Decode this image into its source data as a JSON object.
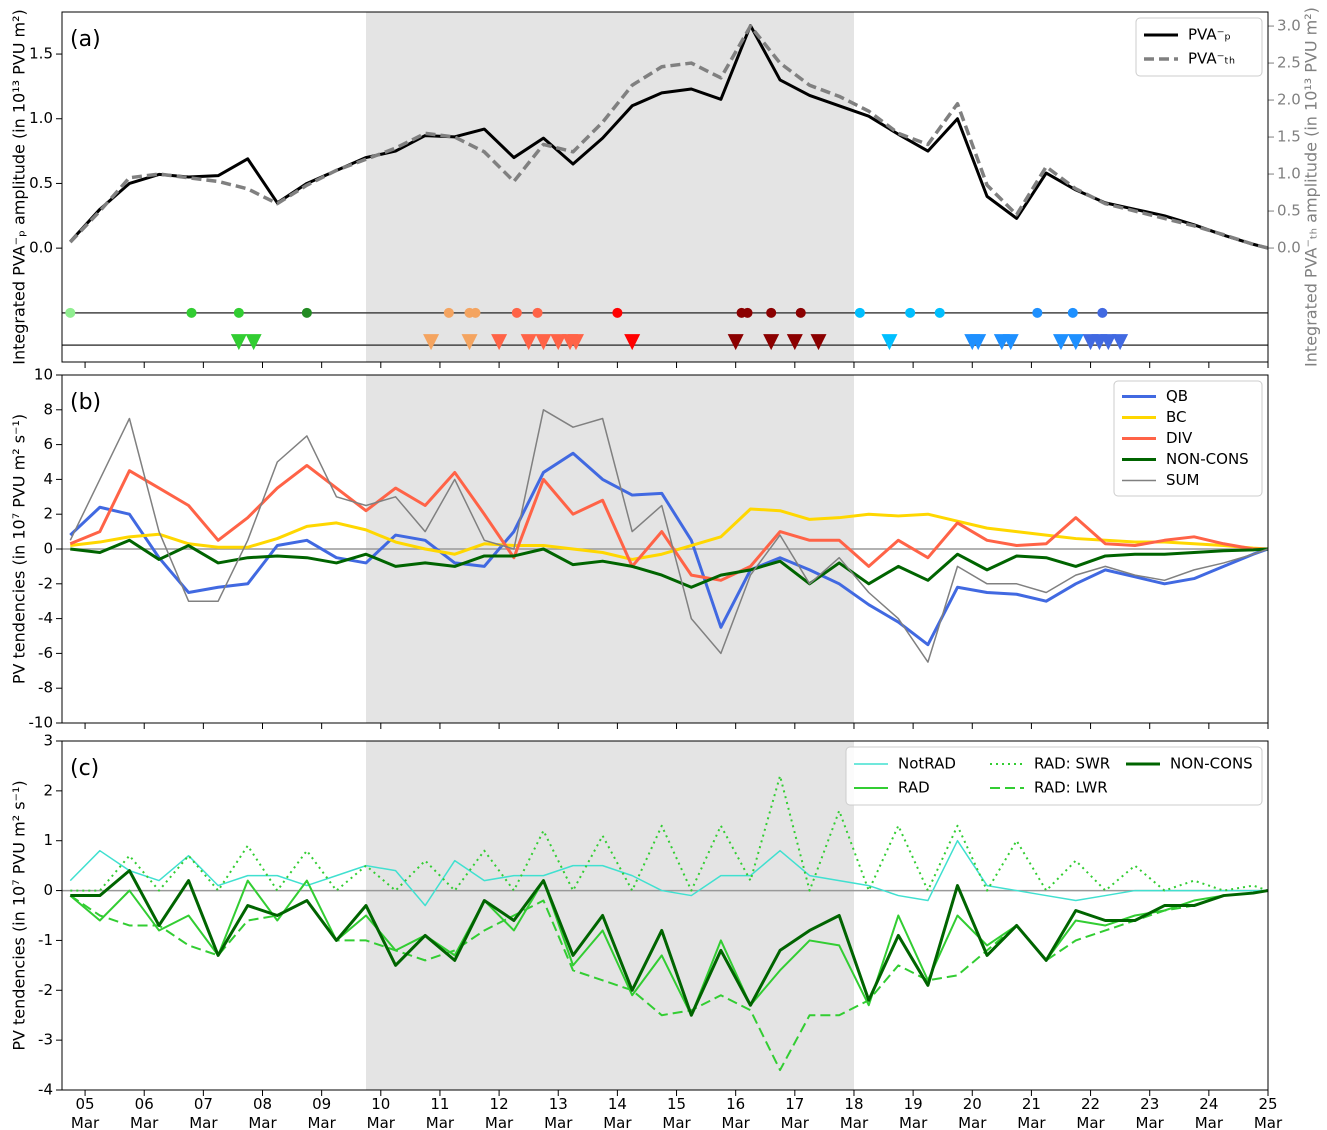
{
  "chart_data": [
    {
      "type": "line",
      "panel_label": "(a)",
      "ylabel": "Integrated PVA⁻ₚ amplitude (in 10¹³ PVU m²)",
      "y2label": "Integrated PVA⁻ₜₕ amplitude (in 10¹³ PVU m²)",
      "xlim": [
        4.61,
        25
      ],
      "ylim": [
        -0.88,
        1.825
      ],
      "y2lim": [
        -1.54,
        3.19
      ],
      "xticks": [
        5,
        6,
        7,
        8,
        9,
        10,
        11,
        12,
        13,
        14,
        15,
        16,
        17,
        18,
        19,
        20,
        21,
        22,
        23,
        24,
        25
      ],
      "yticks": [
        {
          "value": 0,
          "label": "0.0"
        },
        {
          "value": 0.5,
          "label": "0.5"
        },
        {
          "value": 1,
          "label": "1.0"
        },
        {
          "value": 1.5,
          "label": "1.5"
        }
      ],
      "y2ticks": [
        {
          "value": 0,
          "label": "0.0"
        },
        {
          "value": 0.5,
          "label": "0.5"
        },
        {
          "value": 1,
          "label": "1.0"
        },
        {
          "value": 1.5,
          "label": "1.5"
        },
        {
          "value": 2,
          "label": "2.0"
        },
        {
          "value": 2.5,
          "label": "2.5"
        },
        {
          "value": 3,
          "label": "3.0"
        }
      ],
      "shade": [
        9.75,
        18.0
      ],
      "legend": "upper right",
      "x": [
        4.75,
        5.25,
        5.75,
        6.25,
        6.75,
        7.25,
        7.75,
        8.25,
        8.75,
        9.25,
        9.75,
        10.25,
        10.75,
        11.25,
        11.75,
        12.25,
        12.75,
        13.25,
        13.75,
        14.25,
        14.75,
        15.25,
        15.75,
        16.25,
        16.75,
        17.25,
        17.75,
        18.25,
        18.75,
        19.25,
        19.75,
        20.25,
        20.75,
        21.25,
        21.75,
        22.25,
        22.75,
        23.25,
        23.75,
        24.25,
        24.75,
        25
      ],
      "series": [
        {
          "name": "PVA⁻ₚ",
          "color": "#000000",
          "linestyle": "solid",
          "values": [
            0.05,
            0.3,
            0.5,
            0.57,
            0.55,
            0.56,
            0.69,
            0.35,
            0.5,
            0.6,
            0.7,
            0.75,
            0.87,
            0.86,
            0.92,
            0.7,
            0.85,
            0.65,
            0.85,
            1.1,
            1.2,
            1.23,
            1.15,
            1.72,
            1.3,
            1.18,
            1.1,
            1.02,
            0.88,
            0.75,
            1.0,
            0.4,
            0.23,
            0.58,
            0.45,
            0.35,
            0.3,
            0.25,
            0.18,
            0.1,
            0.03,
            0
          ]
        },
        {
          "name": "PVA⁻ₜₕ",
          "color": "#808080",
          "linestyle": "dashed",
          "axis": "y2",
          "values": [
            0.08,
            0.5,
            0.95,
            1.0,
            0.95,
            0.9,
            0.8,
            0.6,
            0.85,
            1.05,
            1.2,
            1.35,
            1.55,
            1.5,
            1.3,
            0.9,
            1.4,
            1.3,
            1.7,
            2.2,
            2.45,
            2.5,
            2.3,
            3.0,
            2.5,
            2.2,
            2.05,
            1.85,
            1.55,
            1.4,
            1.95,
            0.85,
            0.45,
            1.1,
            0.8,
            0.6,
            0.5,
            0.4,
            0.3,
            0.18,
            0.05,
            0
          ]
        }
      ],
      "event_rows": [
        {
          "marker": "circle",
          "y": -0.5,
          "x": [
            4.75,
            6.8,
            7.6,
            8.75,
            11.15,
            11.5,
            11.6,
            12.3,
            12.65,
            14.0,
            16.1,
            16.2,
            16.6,
            17.1,
            18.1,
            18.95,
            19.45,
            21.1,
            21.7,
            22.2
          ],
          "colors": [
            "#90ee90",
            "#32cd32",
            "#32cd32",
            "#228b22",
            "#f4a460",
            "#f4a460",
            "#f4a460",
            "#ff6347",
            "#ff6347",
            "#ff0000",
            "#8b0000",
            "#8b0000",
            "#8b0000",
            "#8b0000",
            "#00bfff",
            "#00bfff",
            "#00bfff",
            "#1e90ff",
            "#1e90ff",
            "#4169e1"
          ]
        },
        {
          "marker": "triangle",
          "y": -0.75,
          "x": [
            7.6,
            7.85,
            10.85,
            11.5,
            12.0,
            12.5,
            12.75,
            13.0,
            13.2,
            13.3,
            14.25,
            16.0,
            16.6,
            17.0,
            17.4,
            18.6,
            20.0,
            20.1,
            20.5,
            20.65,
            21.5,
            21.75,
            22.0,
            22.15,
            22.3,
            22.5
          ],
          "colors": [
            "#32cd32",
            "#32cd32",
            "#f4a460",
            "#f4a460",
            "#ff6347",
            "#ff6347",
            "#ff6347",
            "#ff6347",
            "#ff6347",
            "#ff6347",
            "#ff0000",
            "#8b0000",
            "#8b0000",
            "#8b0000",
            "#8b0000",
            "#00bfff",
            "#1e90ff",
            "#1e90ff",
            "#1e90ff",
            "#1e90ff",
            "#1e90ff",
            "#1e90ff",
            "#4169e1",
            "#4169e1",
            "#4169e1",
            "#4169e1"
          ]
        }
      ]
    },
    {
      "type": "line",
      "panel_label": "(b)",
      "ylabel": "PV tendencies (in 10⁷ PVU m² s⁻¹)",
      "xlim": [
        4.61,
        25
      ],
      "ylim": [
        -10,
        10
      ],
      "xticks": [
        5,
        6,
        7,
        8,
        9,
        10,
        11,
        12,
        13,
        14,
        15,
        16,
        17,
        18,
        19,
        20,
        21,
        22,
        23,
        24,
        25
      ],
      "yticks": [
        -10,
        -8,
        -6,
        -4,
        -2,
        0,
        2,
        4,
        6,
        8,
        10
      ],
      "shade": [
        9.75,
        18.0
      ],
      "hline": 0,
      "legend": "upper right",
      "x": [
        4.75,
        5.25,
        5.75,
        6.25,
        6.75,
        7.25,
        7.75,
        8.25,
        8.75,
        9.25,
        9.75,
        10.25,
        10.75,
        11.25,
        11.75,
        12.25,
        12.75,
        13.25,
        13.75,
        14.25,
        14.75,
        15.25,
        15.75,
        16.25,
        16.75,
        17.25,
        17.75,
        18.25,
        18.75,
        19.25,
        19.75,
        20.25,
        20.75,
        21.25,
        21.75,
        22.25,
        22.75,
        23.25,
        23.75,
        24.25,
        24.75,
        25
      ],
      "series": [
        {
          "name": "QB",
          "color": "#4169e1",
          "linestyle": "solid",
          "values": [
            0.8,
            2.4,
            2.0,
            -0.5,
            -2.5,
            -2.2,
            -2.0,
            0.2,
            0.5,
            -0.5,
            -0.8,
            0.8,
            0.5,
            -0.8,
            -1.0,
            1.0,
            4.4,
            5.5,
            4.0,
            3.1,
            3.2,
            0.5,
            -4.5,
            -1.2,
            -0.5,
            -1.2,
            -2.0,
            -3.2,
            -4.2,
            -5.5,
            -2.2,
            -2.5,
            -2.6,
            -3.0,
            -2.0,
            -1.2,
            -1.6,
            -2.0,
            -1.7,
            -1.0,
            -0.3,
            0
          ]
        },
        {
          "name": "BC",
          "color": "#ffd700",
          "linestyle": "solid",
          "values": [
            0.2,
            0.4,
            0.7,
            0.85,
            0.3,
            0.1,
            0.1,
            0.6,
            1.3,
            1.5,
            1.1,
            0.4,
            0.0,
            -0.3,
            0.3,
            0.2,
            0.2,
            0.0,
            -0.2,
            -0.6,
            -0.3,
            0.2,
            0.7,
            2.3,
            2.2,
            1.7,
            1.8,
            2.0,
            1.9,
            2.0,
            1.6,
            1.2,
            1.0,
            0.8,
            0.6,
            0.5,
            0.4,
            0.4,
            0.3,
            0.2,
            0.05,
            0
          ]
        },
        {
          "name": "DIV",
          "color": "#ff6347",
          "linestyle": "solid",
          "values": [
            0.3,
            1.0,
            4.5,
            3.5,
            2.5,
            0.5,
            1.8,
            3.5,
            4.8,
            3.5,
            2.2,
            3.5,
            2.5,
            4.4,
            2.0,
            -0.5,
            4.0,
            2.0,
            2.8,
            -1.0,
            1.0,
            -1.5,
            -1.8,
            -1.0,
            1.0,
            0.5,
            0.5,
            -1.0,
            0.5,
            -0.5,
            1.5,
            0.5,
            0.2,
            0.3,
            1.8,
            0.3,
            0.2,
            0.5,
            0.7,
            0.3,
            0.0,
            0
          ]
        },
        {
          "name": "NON-CONS",
          "color": "#006400",
          "linestyle": "solid",
          "values": [
            0.0,
            -0.2,
            0.5,
            -0.6,
            0.2,
            -0.8,
            -0.5,
            -0.4,
            -0.5,
            -0.8,
            -0.3,
            -1.0,
            -0.8,
            -1.0,
            -0.4,
            -0.4,
            0.0,
            -0.9,
            -0.7,
            -1.0,
            -1.5,
            -2.2,
            -1.5,
            -1.2,
            -0.7,
            -2.0,
            -0.8,
            -2.0,
            -1.0,
            -1.8,
            -0.3,
            -1.2,
            -0.4,
            -0.5,
            -1.0,
            -0.4,
            -0.3,
            -0.3,
            -0.2,
            -0.1,
            -0.05,
            0
          ]
        },
        {
          "name": "SUM",
          "color": "#808080",
          "linestyle": "solid",
          "values": [
            0.5,
            4.0,
            7.5,
            1.0,
            -3.0,
            -3.0,
            0.5,
            5.0,
            6.5,
            3.0,
            2.5,
            3.0,
            1.0,
            4.0,
            0.5,
            0.0,
            8.0,
            7.0,
            7.5,
            1.0,
            2.5,
            -4.0,
            -6.0,
            -1.5,
            0.8,
            -2.0,
            -0.5,
            -2.5,
            -4.0,
            -6.5,
            -1.0,
            -2.0,
            -2.0,
            -2.5,
            -1.5,
            -1.0,
            -1.5,
            -1.8,
            -1.2,
            -0.8,
            -0.3,
            0
          ]
        }
      ]
    },
    {
      "type": "line",
      "panel_label": "(c)",
      "ylabel": "PV tendencies (in 10⁷ PVU m² s⁻¹)",
      "xlim": [
        4.61,
        25
      ],
      "ylim": [
        -4,
        3
      ],
      "xticks": [
        {
          "value": 5,
          "label": "05\nMar"
        },
        {
          "value": 6,
          "label": "06\nMar"
        },
        {
          "value": 7,
          "label": "07\nMar"
        },
        {
          "value": 8,
          "label": "08\nMar"
        },
        {
          "value": 9,
          "label": "09\nMar"
        },
        {
          "value": 10,
          "label": "10\nMar"
        },
        {
          "value": 11,
          "label": "11\nMar"
        },
        {
          "value": 12,
          "label": "12\nMar"
        },
        {
          "value": 13,
          "label": "13\nMar"
        },
        {
          "value": 14,
          "label": "14\nMar"
        },
        {
          "value": 15,
          "label": "15\nMar"
        },
        {
          "value": 16,
          "label": "16\nMar"
        },
        {
          "value": 17,
          "label": "17\nMar"
        },
        {
          "value": 18,
          "label": "18\nMar"
        },
        {
          "value": 19,
          "label": "19\nMar"
        },
        {
          "value": 20,
          "label": "20\nMar"
        },
        {
          "value": 21,
          "label": "21\nMar"
        },
        {
          "value": 22,
          "label": "22\nMar"
        },
        {
          "value": 23,
          "label": "23\nMar"
        },
        {
          "value": 24,
          "label": "24\nMar"
        },
        {
          "value": 25,
          "label": "25\nMar"
        }
      ],
      "yticks": [
        -4,
        -3,
        -2,
        -1,
        0,
        1,
        2,
        3
      ],
      "shade": [
        9.75,
        18.0
      ],
      "hline": 0,
      "legend": "upper right",
      "x": [
        4.75,
        5.25,
        5.75,
        6.25,
        6.75,
        7.25,
        7.75,
        8.25,
        8.75,
        9.25,
        9.75,
        10.25,
        10.75,
        11.25,
        11.75,
        12.25,
        12.75,
        13.25,
        13.75,
        14.25,
        14.75,
        15.25,
        15.75,
        16.25,
        16.75,
        17.25,
        17.75,
        18.25,
        18.75,
        19.25,
        19.75,
        20.25,
        20.75,
        21.25,
        21.75,
        22.25,
        22.75,
        23.25,
        23.75,
        24.25,
        24.75,
        25
      ],
      "series": [
        {
          "name": "NotRAD",
          "color": "#40e0d0",
          "linestyle": "solid",
          "values": [
            0.2,
            0.8,
            0.4,
            0.2,
            0.7,
            0.1,
            0.3,
            0.3,
            0.1,
            0.3,
            0.5,
            0.4,
            -0.3,
            0.6,
            0.2,
            0.3,
            0.3,
            0.5,
            0.5,
            0.3,
            0.0,
            -0.1,
            0.3,
            0.3,
            0.8,
            0.3,
            0.2,
            0.1,
            -0.1,
            -0.2,
            1.0,
            0.1,
            0.0,
            -0.1,
            -0.2,
            -0.1,
            0.0,
            0.0,
            0.0,
            0.0,
            0.0,
            0
          ]
        },
        {
          "name": "RAD",
          "color": "#32cd32",
          "linestyle": "solid",
          "values": [
            -0.1,
            -0.6,
            0.0,
            -0.8,
            -0.5,
            -1.3,
            0.2,
            -0.6,
            0.2,
            -1.0,
            -0.5,
            -1.2,
            -0.9,
            -1.3,
            -0.2,
            -0.8,
            0.2,
            -1.5,
            -0.8,
            -2.1,
            -1.3,
            -2.5,
            -1.0,
            -2.3,
            -1.6,
            -1.0,
            -1.1,
            -2.3,
            -0.5,
            -1.8,
            -0.5,
            -1.1,
            -0.7,
            -1.4,
            -0.6,
            -0.7,
            -0.5,
            -0.4,
            -0.2,
            -0.1,
            -0.05,
            0
          ]
        },
        {
          "name": "RAD: SWR",
          "color": "#32cd32",
          "linestyle": "dotted",
          "values": [
            0,
            0,
            0.7,
            0,
            0.7,
            0,
            0.9,
            0,
            0.8,
            0,
            0.5,
            0,
            0.6,
            0,
            0.8,
            0,
            1.2,
            0,
            1.1,
            0,
            1.3,
            0,
            1.3,
            0.2,
            2.3,
            0,
            1.6,
            0,
            1.3,
            0,
            1.3,
            0,
            1.0,
            0,
            0.6,
            0,
            0.5,
            0,
            0.2,
            0,
            0.1,
            0
          ]
        },
        {
          "name": "RAD: LWR",
          "color": "#32cd32",
          "linestyle": "dashed",
          "values": [
            -0.1,
            -0.5,
            -0.7,
            -0.7,
            -1.1,
            -1.3,
            -0.6,
            -0.5,
            -0.2,
            -1.0,
            -1.0,
            -1.2,
            -1.4,
            -1.2,
            -0.8,
            -0.5,
            -0.2,
            -1.6,
            -1.8,
            -2.0,
            -2.5,
            -2.4,
            -2.1,
            -2.4,
            -3.6,
            -2.5,
            -2.5,
            -2.2,
            -1.5,
            -1.8,
            -1.7,
            -1.2,
            -0.7,
            -1.4,
            -1.0,
            -0.8,
            -0.6,
            -0.4,
            -0.3,
            -0.1,
            -0.05,
            0
          ]
        },
        {
          "name": "NON-CONS",
          "color": "#006400",
          "linestyle": "solid",
          "values": [
            -0.1,
            -0.1,
            0.4,
            -0.7,
            0.2,
            -1.3,
            -0.3,
            -0.5,
            -0.2,
            -1.0,
            -0.3,
            -1.5,
            -0.9,
            -1.4,
            -0.2,
            -0.6,
            0.2,
            -1.3,
            -0.5,
            -2.0,
            -0.8,
            -2.5,
            -1.2,
            -2.3,
            -1.2,
            -0.8,
            -0.5,
            -2.2,
            -0.9,
            -1.9,
            0.1,
            -1.3,
            -0.7,
            -1.4,
            -0.4,
            -0.6,
            -0.6,
            -0.3,
            -0.3,
            -0.1,
            -0.05,
            0
          ]
        }
      ]
    }
  ]
}
